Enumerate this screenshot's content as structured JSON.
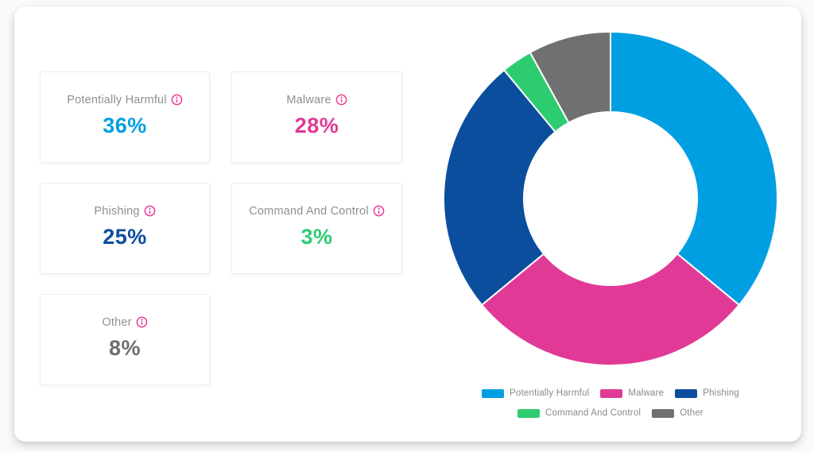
{
  "cards": [
    {
      "label": "Potentially Harmful",
      "value": "36%",
      "color": "#009FE1"
    },
    {
      "label": "Malware",
      "value": "28%",
      "color": "#E03A96"
    },
    {
      "label": "Phishing",
      "value": "25%",
      "color": "#0A4E9D"
    },
    {
      "label": "Command And Control",
      "value": "3%",
      "color": "#2ECC71"
    },
    {
      "label": "Other",
      "value": "8%",
      "color": "#6F6F6F"
    }
  ],
  "chart_data": {
    "type": "pie",
    "subtype": "donut",
    "categories": [
      "Potentially Harmful",
      "Malware",
      "Phishing",
      "Command And Control",
      "Other"
    ],
    "values": [
      36,
      28,
      25,
      3,
      8
    ],
    "unit": "%",
    "colors": [
      "#009FE1",
      "#E03A96",
      "#0A4E9D",
      "#2ECC71",
      "#707070"
    ],
    "start_angle_deg": 0,
    "direction": "clockwise",
    "inner_radius_ratio": 0.52,
    "slice_separator_color": "#FFFFFF",
    "legend_position": "bottom",
    "legend_rows": [
      [
        "Potentially Harmful",
        "Malware",
        "Phishing"
      ],
      [
        "Command And Control",
        "Other"
      ]
    ]
  },
  "ui_colors": {
    "info_icon": "#ED3C95",
    "label_gray": "#8F8F8F",
    "legend_text": "#8A8A8A",
    "card_border": "#EDEDED"
  }
}
